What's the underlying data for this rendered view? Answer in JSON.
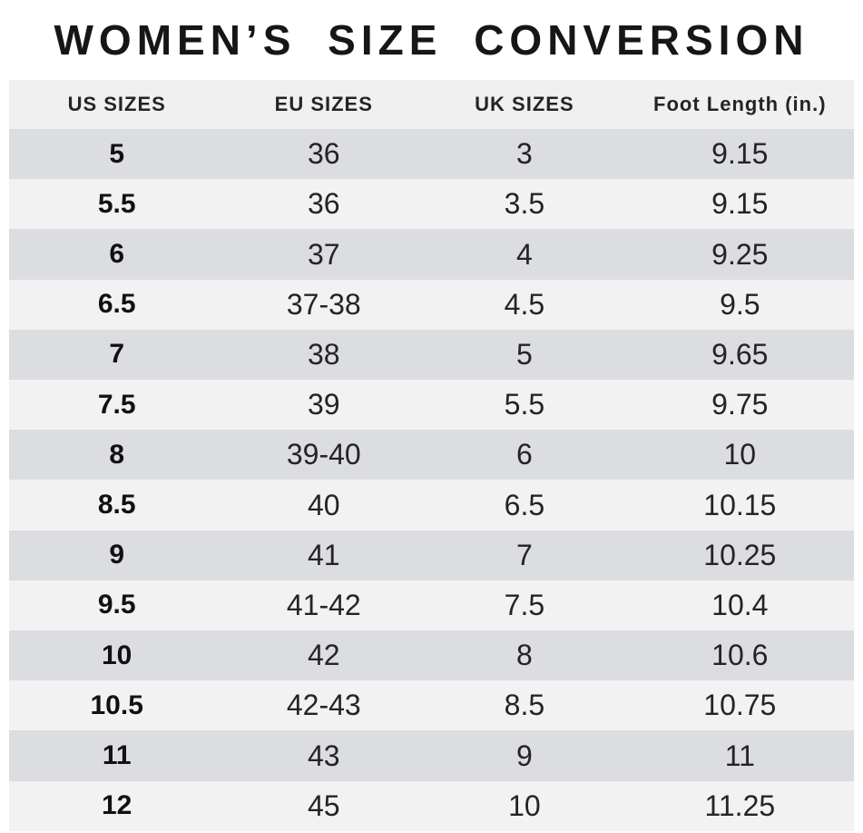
{
  "title": "WOMEN’S SIZE CONVERSION",
  "chart_data": {
    "type": "table",
    "title": "WOMEN’S SIZE CONVERSION",
    "columns": [
      "US SIZES",
      "EU SIZES",
      "UK SIZES",
      "Foot Length (in.)"
    ],
    "rows": [
      [
        "5",
        "36",
        "3",
        "9.15"
      ],
      [
        "5.5",
        "36",
        "3.5",
        "9.15"
      ],
      [
        "6",
        "37",
        "4",
        "9.25"
      ],
      [
        "6.5",
        "37-38",
        "4.5",
        "9.5"
      ],
      [
        "7",
        "38",
        "5",
        "9.65"
      ],
      [
        "7.5",
        "39",
        "5.5",
        "9.75"
      ],
      [
        "8",
        "39-40",
        "6",
        "10"
      ],
      [
        "8.5",
        "40",
        "6.5",
        "10.15"
      ],
      [
        "9",
        "41",
        "7",
        "10.25"
      ],
      [
        "9.5",
        "41-42",
        "7.5",
        "10.4"
      ],
      [
        "10",
        "42",
        "8",
        "10.6"
      ],
      [
        "10.5",
        "42-43",
        "8.5",
        "10.75"
      ],
      [
        "11",
        "43",
        "9",
        "11"
      ],
      [
        "12",
        "45",
        "10",
        "11.25"
      ]
    ],
    "layout": {
      "row_striping": "alternating, first data row shaded darker",
      "alignment": "all cells centered",
      "first_column_style": "bold"
    }
  },
  "colors": {
    "background": "#ffffff",
    "header_bg": "#f0f0f1",
    "row_dark": "#dcdde0",
    "row_light": "#f2f2f3",
    "text": "#242424",
    "bold_text": "#111111",
    "title_text": "#161616"
  }
}
